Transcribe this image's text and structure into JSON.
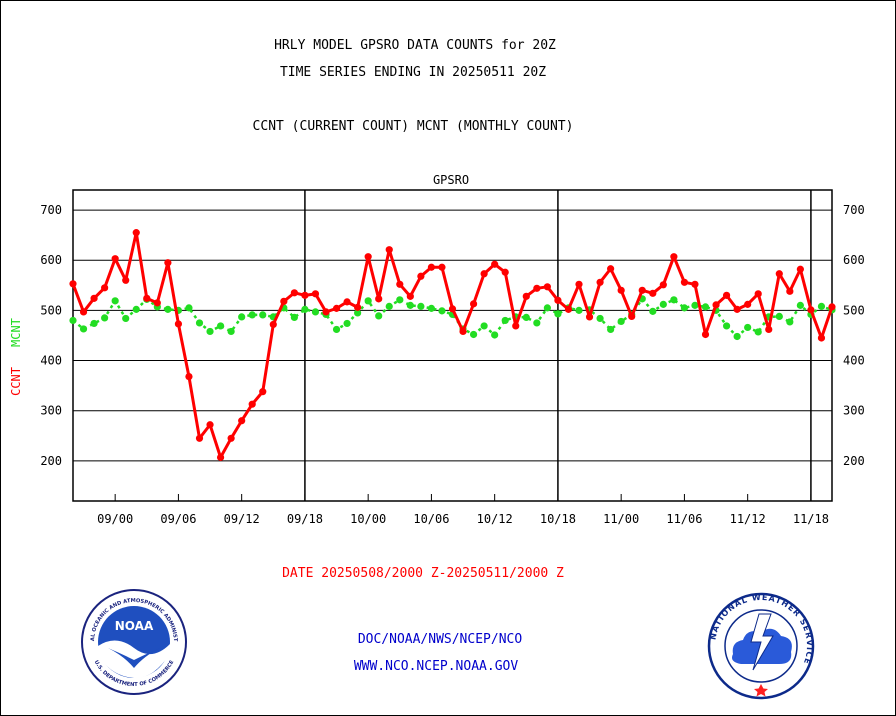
{
  "header": {
    "title_line1": "HRLY MODEL GPSRO DATA COUNTS for 20Z",
    "title_line2": "TIME SERIES ENDING IN 20250511 20Z",
    "title_line3": "CCNT (CURRENT COUNT) MCNT (MONTHLY COUNT)"
  },
  "footer": {
    "date_range": "DATE 20250508/2000 Z-20250511/2000 Z",
    "org_path": "DOC/NOAA/NWS/NCEP/NCO",
    "website": "WWW.NCO.NCEP.NOAA.GOV"
  },
  "logos": {
    "noaa_label": "NOAA",
    "noaa_ring_top": "NATIONAL OCEANIC AND ATMOSPHERIC ADMINISTRATION",
    "noaa_ring_bottom": "U.S. DEPARTMENT OF COMMERCE",
    "nws_ring_text": "NATIONAL WEATHER SERVICE"
  },
  "chart_data": {
    "type": "line",
    "subtitle": "GPSRO",
    "ylabel_current": "CCNT",
    "ylabel_monthly": "MCNT",
    "ylim": [
      120,
      740
    ],
    "yticks": [
      200,
      300,
      400,
      500,
      600,
      700
    ],
    "grid": true,
    "x_tick_labels": [
      "09/00",
      "09/06",
      "09/12",
      "09/18",
      "10/00",
      "10/06",
      "10/12",
      "10/18",
      "11/00",
      "11/06",
      "11/12",
      "11/18"
    ],
    "x_tick_hours": [
      4,
      10,
      16,
      22,
      28,
      34,
      40,
      46,
      52,
      58,
      64,
      70
    ],
    "day_boundaries_hours": [
      22,
      46,
      70
    ],
    "x_range_hours": [
      0,
      72
    ],
    "colors": {
      "current": "#ff0000",
      "monthly": "#22dd22",
      "axis_text": "#000000",
      "subtitle": "#0000cc"
    },
    "series": [
      {
        "name": "CCNT",
        "values": [
          553,
          497,
          524,
          545,
          603,
          560,
          655,
          524,
          515,
          595,
          473,
          368,
          245,
          272,
          207,
          245,
          280,
          313,
          338,
          472,
          518,
          535,
          530,
          533,
          497,
          504,
          517,
          506,
          607,
          523,
          621,
          552,
          528,
          568,
          586,
          586,
          503,
          458,
          513,
          573,
          592,
          576,
          469,
          528,
          544,
          547,
          520,
          502,
          552,
          487,
          556,
          583,
          540,
          488,
          540,
          534,
          551,
          607,
          556,
          552,
          452,
          511,
          530,
          502,
          512,
          533,
          462,
          573,
          538,
          582,
          501,
          445,
          507
        ]
      },
      {
        "name": "MCNT",
        "values": [
          480,
          463,
          474,
          485,
          519,
          484,
          502,
          522,
          507,
          502,
          500,
          505,
          475,
          458,
          469,
          458,
          487,
          491,
          491,
          487,
          505,
          486,
          502,
          497,
          492,
          462,
          474,
          495,
          519,
          489,
          508,
          521,
          510,
          508,
          504,
          499,
          492,
          463,
          452,
          469,
          451,
          480,
          487,
          486,
          475,
          505,
          493,
          505,
          500,
          501,
          484,
          462,
          478,
          492,
          523,
          498,
          512,
          521,
          505,
          510,
          507,
          500,
          469,
          448,
          466,
          457,
          487,
          488,
          477,
          510,
          492,
          508,
          501
        ]
      }
    ]
  }
}
